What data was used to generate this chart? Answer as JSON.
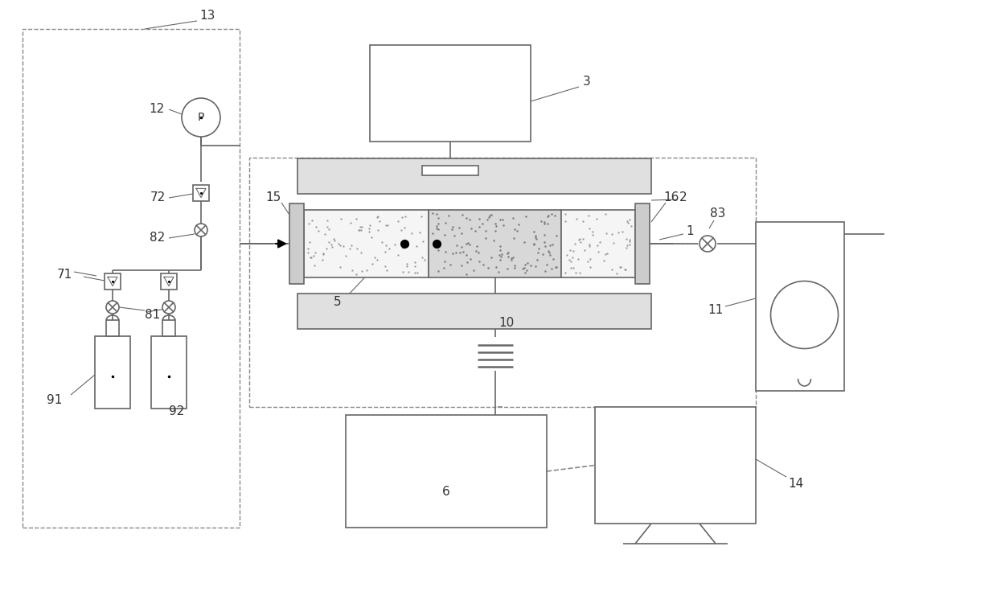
{
  "bg_color": "#ffffff",
  "lc": "#666666",
  "lc_dark": "#333333",
  "lc_dash": "#888888",
  "figsize": [
    12.4,
    7.56
  ],
  "dpi": 100
}
